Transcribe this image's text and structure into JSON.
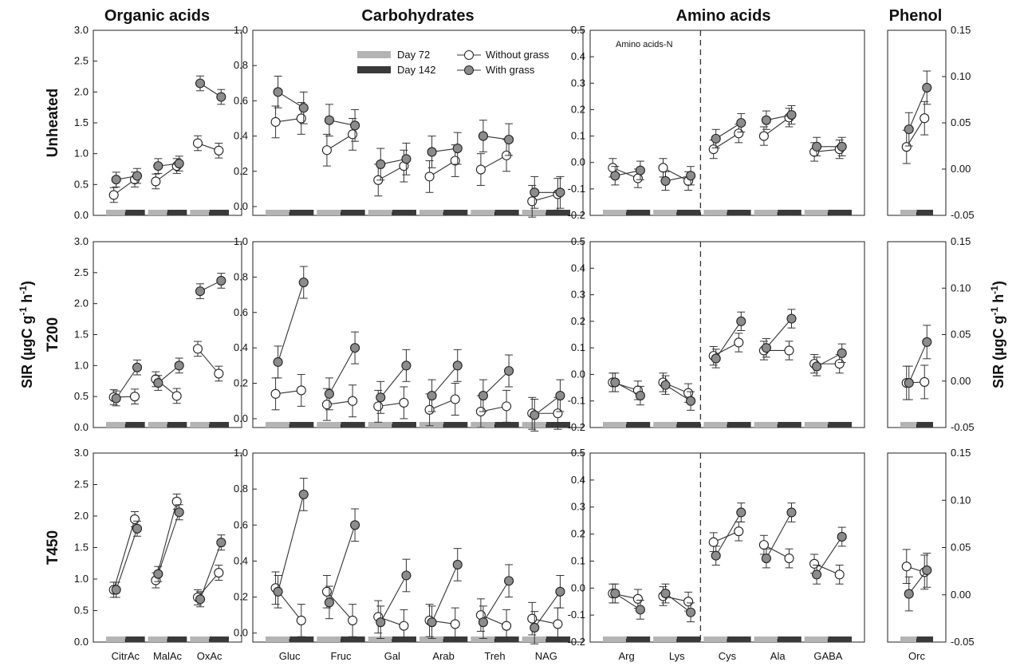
{
  "chart_data": {
    "type": "scatter",
    "ylabel": "SIR (µgC g-1 h-1)",
    "ylabel_parts": {
      "base": "SIR (µgC g",
      "exp1": "-1",
      "mid": " h",
      "exp2": "-1",
      "end": ")"
    },
    "group_titles": [
      "Organic acids",
      "Carbohydrates",
      "Amino acids",
      "Phenol"
    ],
    "row_titles": [
      "Unheated",
      "T200",
      "T450"
    ],
    "legend": {
      "day72": "Day 72",
      "day142": "Day 142",
      "without": "Without grass",
      "with": "With grass"
    },
    "colors": {
      "day72": "#b4b4b4",
      "day142": "#3a3a3a",
      "with_fill": "#8c8c8c",
      "without_fill": "#ffffff",
      "line": "#333333"
    },
    "note": "Amino acids-N",
    "categories": [
      [
        "CitrAc",
        "MalAc",
        "OxAc"
      ],
      [
        "Gluc",
        "Fruc",
        "Gal",
        "Arab",
        "Treh",
        "NAG"
      ],
      [
        "Arg",
        "Lys",
        "Cys",
        "Ala",
        "GABA"
      ],
      [
        "Orc"
      ]
    ],
    "ylim": [
      [
        0,
        3.0
      ],
      [
        -0.05,
        1.0
      ],
      [
        -0.2,
        0.5
      ],
      [
        -0.05,
        0.15
      ]
    ],
    "yticks": [
      [
        "0.0",
        "0.5",
        "1.0",
        "1.5",
        "2.0",
        "2.5",
        "3.0"
      ],
      [
        "0.0",
        "0.2",
        "0.4",
        "0.6",
        "0.8",
        "1.0"
      ],
      [
        "-0.2",
        "-0.1",
        "0.0",
        "0.1",
        "0.2",
        "0.3",
        "0.4",
        "0.5"
      ],
      [
        "-0.05",
        "0.00",
        "0.05",
        "0.10",
        "0.15"
      ]
    ],
    "rows": [
      {
        "name": "Unheated",
        "without": [
          [
            [
              0.33,
              0.58
            ],
            [
              0.55,
              0.8
            ],
            [
              1.17,
              1.05
            ]
          ],
          [
            [
              0.48,
              0.5
            ],
            [
              0.32,
              0.41
            ],
            [
              0.15,
              0.23
            ],
            [
              0.17,
              0.26
            ],
            [
              0.21,
              0.29
            ],
            [
              0.03,
              0.07
            ]
          ],
          [
            [
              -0.02,
              -0.06
            ],
            [
              -0.02,
              -0.07
            ],
            [
              0.05,
              0.11
            ],
            [
              0.1,
              0.17
            ],
            [
              0.04,
              0.05
            ]
          ],
          [
            [
              0.024,
              0.055
            ]
          ]
        ],
        "with": [
          [
            [
              0.58,
              0.64
            ],
            [
              0.8,
              0.84
            ],
            [
              2.14,
              1.92
            ]
          ],
          [
            [
              0.65,
              0.56
            ],
            [
              0.49,
              0.46
            ],
            [
              0.24,
              0.27
            ],
            [
              0.31,
              0.33
            ],
            [
              0.4,
              0.38
            ],
            [
              0.08,
              0.08
            ]
          ],
          [
            [
              -0.05,
              -0.03
            ],
            [
              -0.07,
              -0.05
            ],
            [
              0.09,
              0.15
            ],
            [
              0.16,
              0.18
            ],
            [
              0.06,
              0.06
            ]
          ],
          [
            [
              0.043,
              0.088
            ]
          ]
        ]
      },
      {
        "name": "T200",
        "without": [
          [
            [
              0.49,
              0.5
            ],
            [
              0.78,
              0.51
            ],
            [
              1.27,
              0.87
            ]
          ],
          [
            [
              0.14,
              0.16
            ],
            [
              0.08,
              0.1
            ],
            [
              0.07,
              0.09
            ],
            [
              0.05,
              0.11
            ],
            [
              0.04,
              0.07
            ],
            [
              0.03,
              0.03
            ]
          ],
          [
            [
              -0.03,
              -0.06
            ],
            [
              -0.03,
              -0.07
            ],
            [
              0.07,
              0.12
            ],
            [
              0.09,
              0.09
            ],
            [
              0.04,
              0.04
            ]
          ],
          [
            [
              -0.002,
              -0.001
            ]
          ]
        ],
        "with": [
          [
            [
              0.47,
              0.97
            ],
            [
              0.72,
              1.0
            ],
            [
              2.2,
              2.37
            ]
          ],
          [
            [
              0.32,
              0.77
            ],
            [
              0.14,
              0.4
            ],
            [
              0.12,
              0.3
            ],
            [
              0.13,
              0.3
            ],
            [
              0.13,
              0.27
            ],
            [
              0.02,
              0.13
            ]
          ],
          [
            [
              -0.03,
              -0.08
            ],
            [
              -0.04,
              -0.1
            ],
            [
              0.06,
              0.2
            ],
            [
              0.1,
              0.21
            ],
            [
              0.03,
              0.08
            ]
          ],
          [
            [
              -0.002,
              0.042
            ]
          ]
        ]
      },
      {
        "name": "T450",
        "without": [
          [
            [
              0.83,
              1.95
            ],
            [
              0.98,
              2.23
            ],
            [
              0.71,
              1.1
            ]
          ],
          [
            [
              0.25,
              0.07
            ],
            [
              0.23,
              0.07
            ],
            [
              0.09,
              0.04
            ],
            [
              0.07,
              0.05
            ],
            [
              0.1,
              0.04
            ],
            [
              0.08,
              0.05
            ]
          ],
          [
            [
              -0.02,
              -0.04
            ],
            [
              -0.03,
              -0.05
            ],
            [
              0.17,
              0.21
            ],
            [
              0.16,
              0.11
            ],
            [
              0.09,
              0.05
            ]
          ],
          [
            [
              0.03,
              0.024
            ]
          ]
        ],
        "with": [
          [
            [
              0.83,
              1.8
            ],
            [
              1.08,
              2.06
            ],
            [
              0.68,
              1.58
            ]
          ],
          [
            [
              0.23,
              0.77
            ],
            [
              0.17,
              0.6
            ],
            [
              0.06,
              0.32
            ],
            [
              0.06,
              0.38
            ],
            [
              0.06,
              0.29
            ],
            [
              0.03,
              0.23
            ]
          ],
          [
            [
              -0.02,
              -0.08
            ],
            [
              -0.02,
              -0.09
            ],
            [
              0.12,
              0.28
            ],
            [
              0.11,
              0.28
            ],
            [
              0.05,
              0.19
            ]
          ],
          [
            [
              0.001,
              0.026
            ]
          ]
        ]
      }
    ],
    "error_bar_size": [
      0.12,
      0.09,
      0.035,
      0.018
    ]
  }
}
